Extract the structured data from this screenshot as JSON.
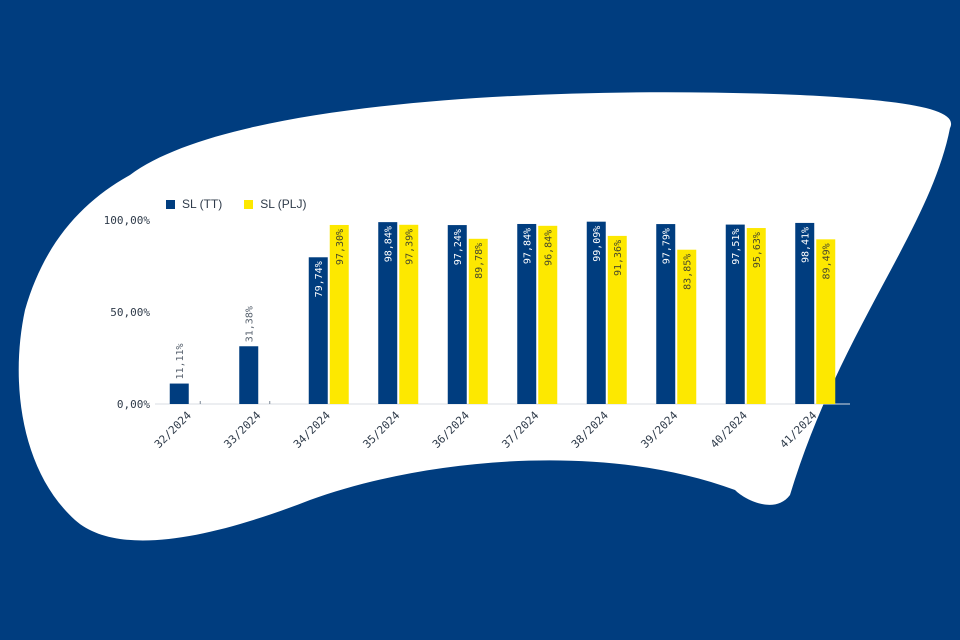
{
  "colors": {
    "background": "#003d7f",
    "blob": "#ffffff",
    "series_tt": "#003d7f",
    "series_plj": "#fde800",
    "axis_text": "#2f3b4a",
    "gridline": "#d9dde3"
  },
  "legend": {
    "items": [
      {
        "label": "SL (TT)",
        "color": "#003d7f"
      },
      {
        "label": "SL (PLJ)",
        "color": "#fde800"
      }
    ]
  },
  "chart_data": {
    "type": "bar",
    "title": "",
    "xlabel": "",
    "ylabel": "",
    "categories": [
      "32/2024",
      "33/2024",
      "34/2024",
      "35/2024",
      "36/2024",
      "37/2024",
      "38/2024",
      "39/2024",
      "40/2024",
      "41/2024"
    ],
    "yticks": [
      "0,00%",
      "50,00%",
      "100,00%"
    ],
    "ylim": [
      0,
      100
    ],
    "grid": false,
    "legend_position": "top-left",
    "series": [
      {
        "name": "SL (TT)",
        "color": "#003d7f",
        "values": [
          11.11,
          31.38,
          79.74,
          98.84,
          97.24,
          97.84,
          99.09,
          97.79,
          97.51,
          98.41
        ],
        "labels": [
          "11,11%",
          "31,38%",
          "79,74%",
          "98,84%",
          "97,24%",
          "97,84%",
          "99,09%",
          "97,79%",
          "97,51%",
          "98,41%"
        ]
      },
      {
        "name": "SL (PLJ)",
        "color": "#fde800",
        "values": [
          null,
          null,
          97.3,
          97.39,
          89.78,
          96.84,
          91.36,
          83.85,
          95.63,
          89.49
        ],
        "labels": [
          "",
          "",
          "97,30%",
          "97,39%",
          "89,78%",
          "96,84%",
          "91,36%",
          "83,85%",
          "95,63%",
          "89,49%"
        ]
      }
    ]
  }
}
